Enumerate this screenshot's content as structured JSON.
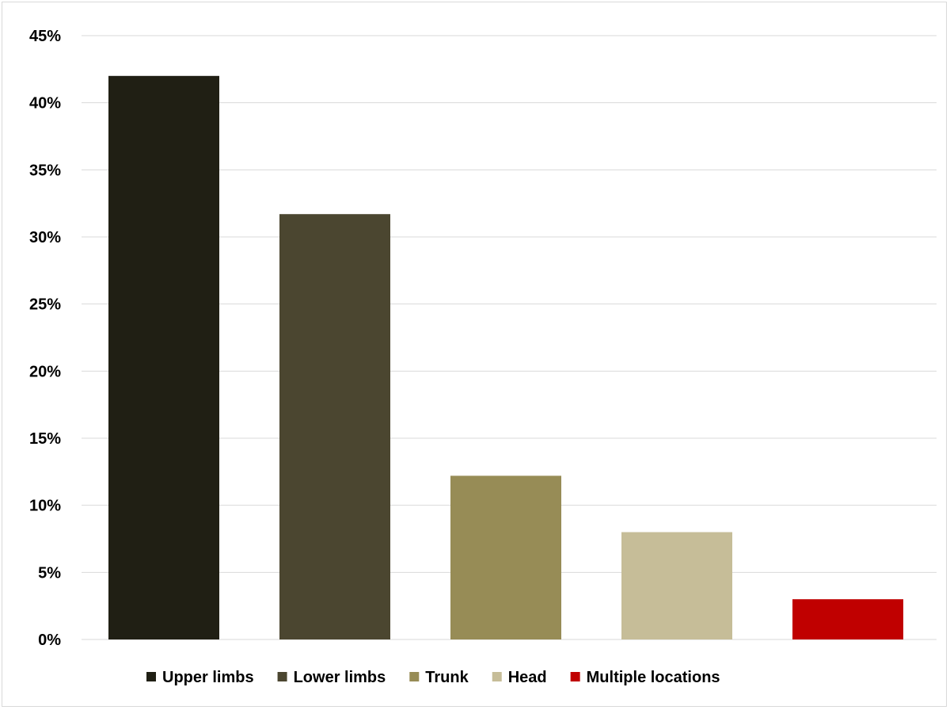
{
  "chart_data": {
    "type": "bar",
    "categories": [
      "Upper limbs",
      "Lower limbs",
      "Trunk",
      "Head",
      "Multiple locations"
    ],
    "values": [
      42,
      31.7,
      12.2,
      8,
      3
    ],
    "colors": [
      "#201f14",
      "#4b4630",
      "#978c56",
      "#c6bd98",
      "#c00000"
    ],
    "y_ticks": [
      "0%",
      "5%",
      "10%",
      "15%",
      "20%",
      "25%",
      "30%",
      "35%",
      "40%",
      "45%"
    ],
    "ylim": [
      0,
      45
    ],
    "grid": true,
    "legend_position": "bottom",
    "title": "",
    "xlabel": "",
    "ylabel": ""
  }
}
